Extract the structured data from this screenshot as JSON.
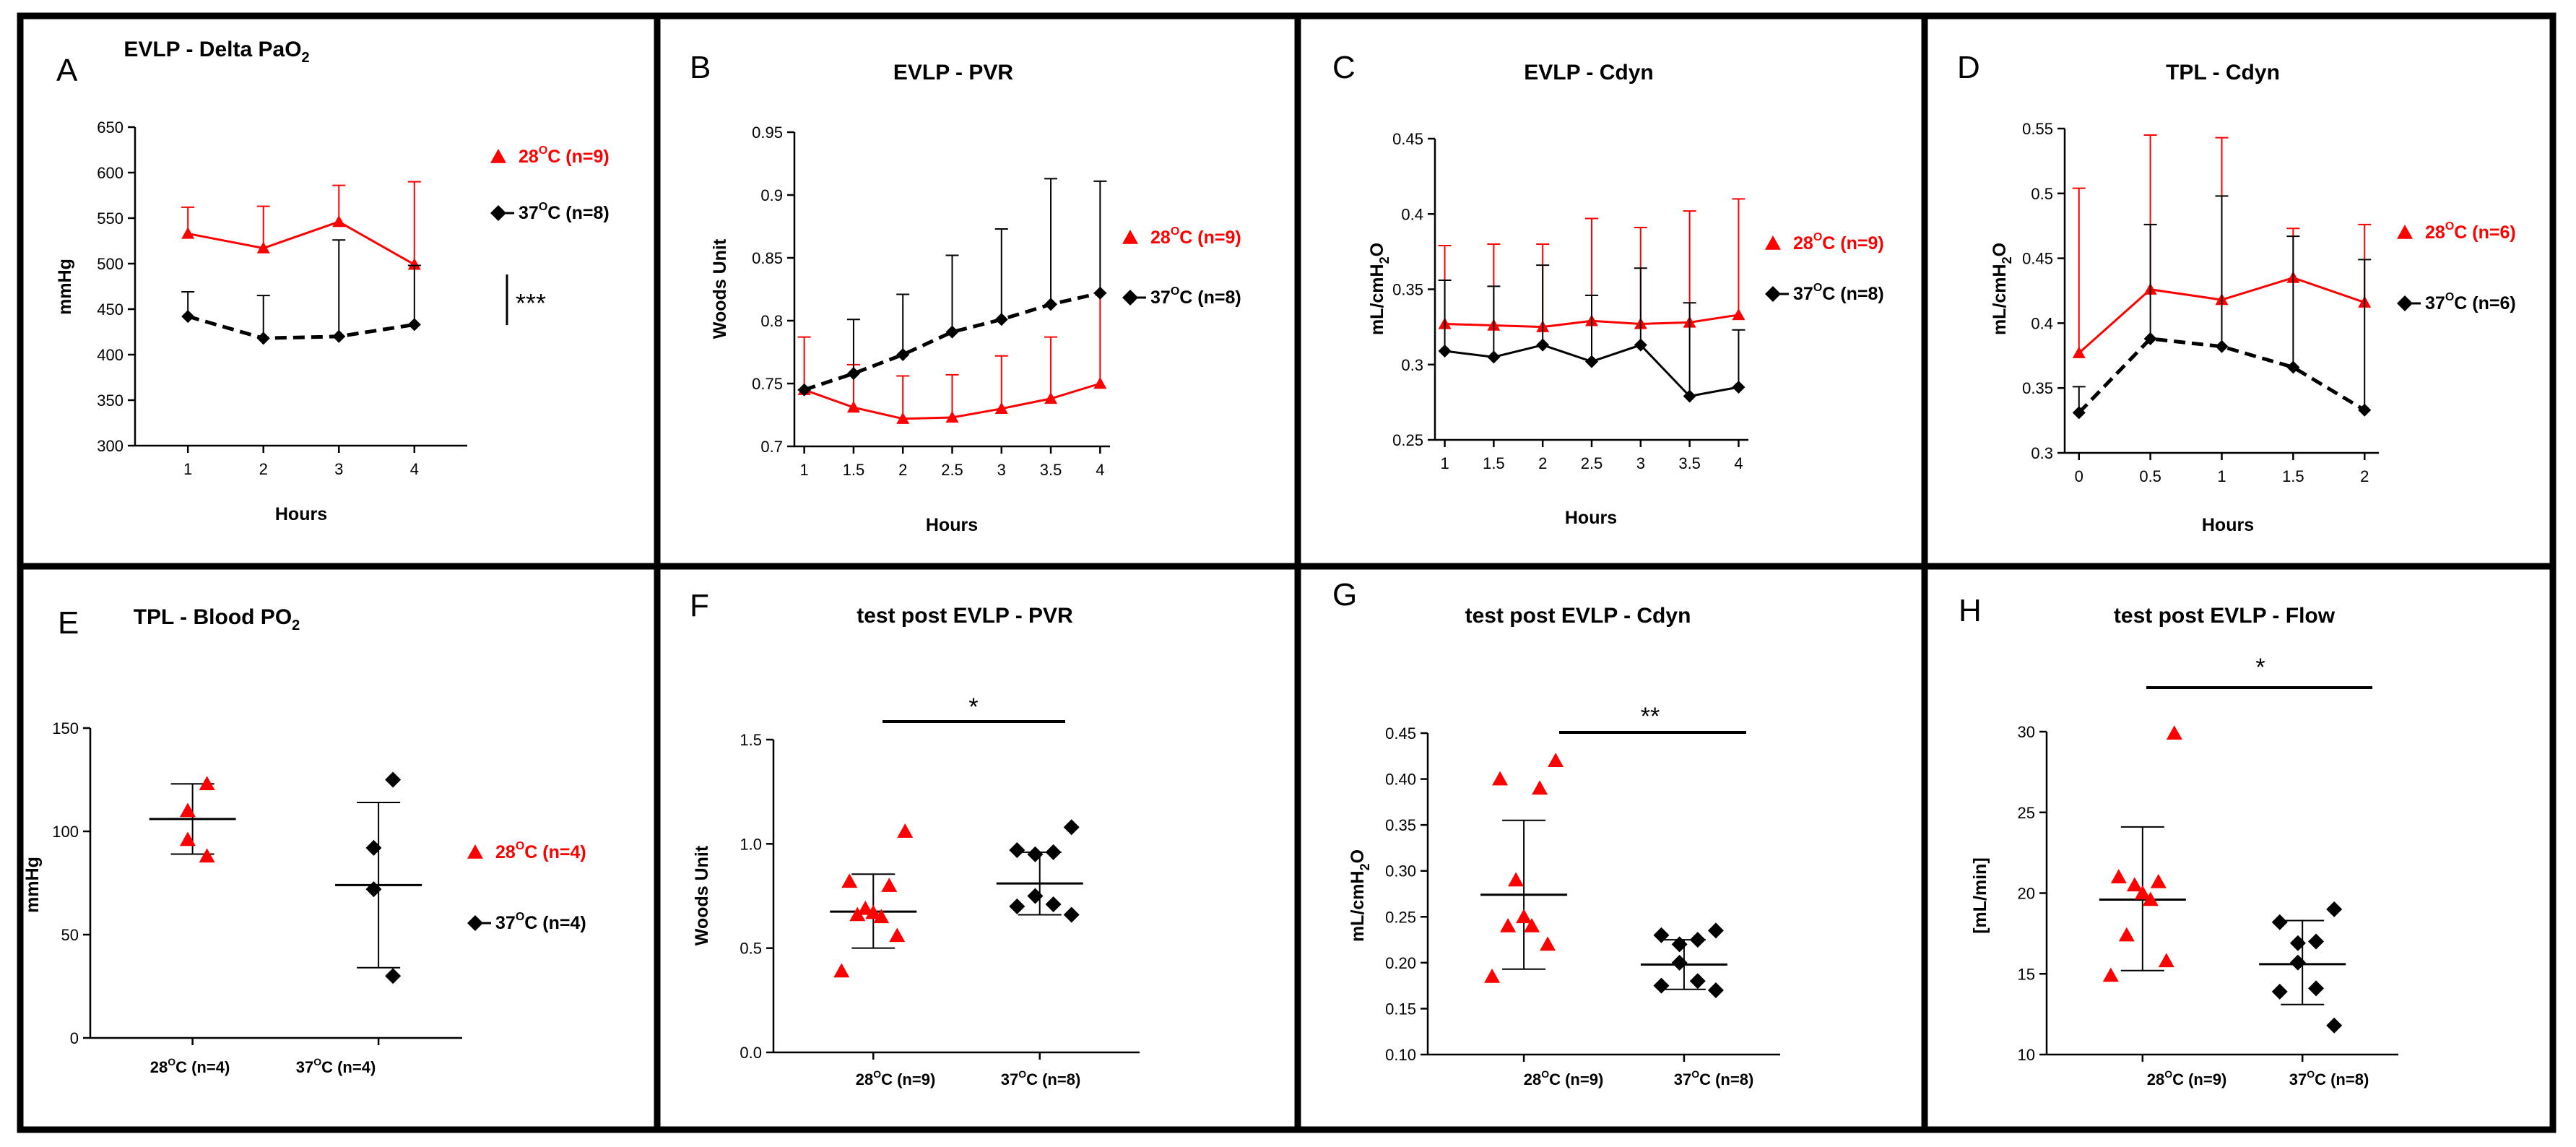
{
  "colors": {
    "warm": "#ff0000",
    "cold": "#000000"
  },
  "chart_data": [
    {
      "id": "A",
      "type": "line",
      "title_main": "EVLP - Delta PaO",
      "title_sub": "2",
      "xlabel": "Hours",
      "ylabel": "mmHg",
      "x": [
        1,
        2,
        3,
        4
      ],
      "xticks": [
        "1",
        "2",
        "3",
        "4"
      ],
      "xlim": [
        0.3,
        4.7
      ],
      "ylim": [
        300,
        650
      ],
      "yticks": [
        300,
        350,
        400,
        450,
        500,
        550,
        600,
        650
      ],
      "series": [
        {
          "name": "28°C (n=9)",
          "color": "#ff0000",
          "marker": "triangle",
          "dashed": false,
          "values": [
            533,
            517,
            546,
            499
          ],
          "err_up": [
            562,
            563,
            586,
            590
          ]
        },
        {
          "name": "37°C (n=8)",
          "color": "#000000",
          "marker": "diamond",
          "dashed": true,
          "values": [
            442,
            418,
            420,
            433
          ],
          "err_up": [
            469,
            465,
            526,
            498
          ]
        }
      ],
      "annotation": "***",
      "legend": [
        {
          "pre": "28",
          "sup": "O",
          "post": "C (n=9)",
          "color": "#ff0000",
          "marker": "triangle"
        },
        {
          "pre": "37",
          "sup": "O",
          "post": "C (n=8)",
          "color": "#000000",
          "marker": "diamond"
        }
      ]
    },
    {
      "id": "B",
      "type": "line",
      "title_main": "EVLP - PVR",
      "title_sub": "",
      "xlabel": "Hours",
      "ylabel": "Woods Unit",
      "x": [
        1,
        1.5,
        2,
        2.5,
        3,
        3.5,
        4
      ],
      "xticks": [
        "1",
        "1.5",
        "2",
        "2.5",
        "3",
        "3.5",
        "4"
      ],
      "xlim": [
        0.9,
        4.1
      ],
      "ylim": [
        0.7,
        0.95
      ],
      "yticks": [
        0.7,
        0.75,
        0.8,
        0.85,
        0.9,
        0.95
      ],
      "series": [
        {
          "name": "28°C (n=9)",
          "color": "#ff0000",
          "marker": "triangle",
          "dashed": false,
          "values": [
            0.745,
            0.731,
            0.722,
            0.723,
            0.73,
            0.738,
            0.75
          ],
          "err_up": [
            0.787,
            0.765,
            0.756,
            0.757,
            0.772,
            0.787,
            0.822
          ]
        },
        {
          "name": "37°C (n=8)",
          "color": "#000000",
          "marker": "diamond",
          "dashed": true,
          "values": [
            0.745,
            0.758,
            0.773,
            0.791,
            0.801,
            0.813,
            0.822
          ],
          "err_up": [
            0.745,
            0.801,
            0.821,
            0.852,
            0.873,
            0.913,
            0.911
          ]
        }
      ],
      "legend": [
        {
          "pre": "28",
          "sup": "O",
          "post": "C (n=9)",
          "color": "#ff0000",
          "marker": "triangle"
        },
        {
          "pre": "37",
          "sup": "O",
          "post": "C (n=8)",
          "color": "#000000",
          "marker": "diamond"
        }
      ]
    },
    {
      "id": "C",
      "type": "line",
      "title_main": "EVLP - Cdyn",
      "title_sub": "",
      "xlabel": "Hours",
      "ylabel_parts": [
        "mL/cmH",
        "2",
        "O"
      ],
      "x": [
        1,
        1.5,
        2,
        2.5,
        3,
        3.5,
        4
      ],
      "xticks": [
        "1",
        "1.5",
        "2",
        "2.5",
        "3",
        "3.5",
        "4"
      ],
      "xlim": [
        0.9,
        4.1
      ],
      "ylim": [
        0.25,
        0.45
      ],
      "yticks": [
        0.25,
        0.3,
        0.35,
        0.4,
        0.45
      ],
      "series": [
        {
          "name": "28°C (n=9)",
          "color": "#ff0000",
          "marker": "triangle",
          "dashed": false,
          "values": [
            0.327,
            0.326,
            0.325,
            0.329,
            0.327,
            0.328,
            0.333
          ],
          "err_up": [
            0.379,
            0.38,
            0.38,
            0.397,
            0.391,
            0.402,
            0.41
          ]
        },
        {
          "name": "37°C (n=8)",
          "color": "#000000",
          "marker": "diamond",
          "dashed": false,
          "values": [
            0.309,
            0.305,
            0.313,
            0.302,
            0.313,
            0.279,
            0.285
          ],
          "err_up": [
            0.356,
            0.352,
            0.366,
            0.346,
            0.364,
            0.341,
            0.323
          ]
        }
      ],
      "legend": [
        {
          "pre": "28",
          "sup": "O",
          "post": "C (n=9)",
          "color": "#ff0000",
          "marker": "triangle"
        },
        {
          "pre": "37",
          "sup": "O",
          "post": "C (n=8)",
          "color": "#000000",
          "marker": "diamond"
        }
      ]
    },
    {
      "id": "D",
      "type": "line",
      "title_main": "TPL - Cdyn",
      "title_sub": "",
      "xlabel": "Hours",
      "ylabel_parts": [
        "mL/cmH",
        "2",
        "O"
      ],
      "x": [
        0,
        0.5,
        1,
        1.5,
        2
      ],
      "xticks": [
        "0",
        "0.5",
        "1",
        "1.5",
        "2"
      ],
      "xlim": [
        -0.1,
        2.1
      ],
      "ylim": [
        0.3,
        0.55
      ],
      "yticks": [
        0.3,
        0.35,
        0.4,
        0.45,
        0.5,
        0.55
      ],
      "series": [
        {
          "name": "28°C (n=6)",
          "color": "#ff0000",
          "marker": "triangle",
          "dashed": false,
          "values": [
            0.377,
            0.426,
            0.418,
            0.435,
            0.416
          ],
          "err_up": [
            0.504,
            0.545,
            0.543,
            0.473,
            0.476
          ]
        },
        {
          "name": "37°C (n=6)",
          "color": "#000000",
          "marker": "diamond",
          "dashed": true,
          "values": [
            0.331,
            0.388,
            0.382,
            0.366,
            0.333
          ],
          "err_up": [
            0.351,
            0.476,
            0.498,
            0.467,
            0.449
          ]
        }
      ],
      "legend": [
        {
          "pre": "28",
          "sup": "O",
          "post": "C (n=6)",
          "color": "#ff0000",
          "marker": "triangle"
        },
        {
          "pre": "37",
          "sup": "O",
          "post": "C (n=6)",
          "color": "#000000",
          "marker": "diamond"
        }
      ]
    },
    {
      "id": "E",
      "type": "scatter",
      "title_main": "TPL - Blood PO",
      "title_sub": "2",
      "ylabel": "mmHg",
      "ylim": [
        0,
        150
      ],
      "yticks": [
        0,
        50,
        100,
        150
      ],
      "xlim": [
        0.45,
        2.45
      ],
      "groups": [
        {
          "pre": "28",
          "sup": "O",
          "post": "C (n=4)",
          "color": "#ff0000",
          "marker": "triangle",
          "points": [
            123,
            110,
            96,
            88
          ],
          "mean": 106,
          "sd_low": 89,
          "sd_high": 123
        },
        {
          "pre": "37",
          "sup": "O",
          "post": "C (n=4)",
          "color": "#000000",
          "marker": "diamond",
          "points": [
            125,
            92,
            72,
            30
          ],
          "mean": 74,
          "sd_low": 34,
          "sd_high": 114
        }
      ],
      "legend": [
        {
          "pre": "28",
          "sup": "O",
          "post": "C (n=4)",
          "color": "#ff0000",
          "marker": "triangle"
        },
        {
          "pre": "37",
          "sup": "O",
          "post": "C (n=4)",
          "color": "#000000",
          "marker": "diamond"
        }
      ]
    },
    {
      "id": "F",
      "type": "scatter",
      "title_main": "test post EVLP - PVR",
      "title_sub": "",
      "ylabel": "Woods Unit",
      "ylim": [
        0,
        1.5
      ],
      "yticks": [
        "0.0",
        "0.5",
        "1.0",
        "1.5"
      ],
      "xlim": [
        0.4,
        2.6
      ],
      "groups": [
        {
          "pre": "28",
          "sup": "O",
          "post": "C (n=9)",
          "color": "#ff0000",
          "marker": "triangle",
          "points": [
            1.06,
            0.82,
            0.8,
            0.69,
            0.67,
            0.65,
            0.66,
            0.56,
            0.39
          ],
          "mean": 0.675,
          "sd_low": 0.5,
          "sd_high": 0.855
        },
        {
          "pre": "37",
          "sup": "O",
          "post": "C (n=8)",
          "color": "#000000",
          "marker": "diamond",
          "points": [
            1.08,
            0.97,
            0.96,
            0.95,
            0.75,
            0.71,
            0.7,
            0.66
          ],
          "mean": 0.81,
          "sd_low": 0.66,
          "sd_high": 0.96
        }
      ],
      "annotation": "*"
    },
    {
      "id": "G",
      "type": "scatter",
      "title_main": "test post EVLP - Cdyn",
      "title_sub": "",
      "ylabel_parts": [
        "mL/cmH",
        "2",
        "O"
      ],
      "ylim": [
        0.1,
        0.45
      ],
      "yticks": [
        "0.10",
        "0.15",
        "0.20",
        "0.25",
        "0.30",
        "0.35",
        "0.40",
        "0.45"
      ],
      "xlim": [
        0.4,
        2.6
      ],
      "groups": [
        {
          "pre": "28",
          "sup": "O",
          "post": "C (n=9)",
          "color": "#ff0000",
          "marker": "triangle",
          "points": [
            0.42,
            0.4,
            0.39,
            0.29,
            0.25,
            0.24,
            0.24,
            0.22,
            0.185
          ],
          "mean": 0.274,
          "sd_low": 0.193,
          "sd_high": 0.355
        },
        {
          "pre": "37",
          "sup": "O",
          "post": "C (n=8)",
          "color": "#000000",
          "marker": "diamond",
          "points": [
            0.235,
            0.23,
            0.225,
            0.22,
            0.2,
            0.18,
            0.175,
            0.17
          ],
          "mean": 0.198,
          "sd_low": 0.171,
          "sd_high": 0.225
        }
      ],
      "annotation": "**"
    },
    {
      "id": "H",
      "type": "scatter",
      "title_main": "test post EVLP - Flow",
      "title_sub": "",
      "ylabel": "[mL/min]",
      "ylim": [
        10,
        30
      ],
      "yticks": [
        10,
        15,
        20,
        25,
        30
      ],
      "xlim": [
        0.4,
        2.6
      ],
      "groups": [
        {
          "pre": "28",
          "sup": "O",
          "post": "C (n=9)",
          "color": "#ff0000",
          "marker": "triangle",
          "points": [
            29.9,
            21.0,
            20.7,
            20.5,
            20.0,
            19.6,
            17.4,
            15.8,
            14.9
          ],
          "mean": 19.6,
          "sd_low": 15.2,
          "sd_high": 24.1
        },
        {
          "pre": "37",
          "sup": "O",
          "post": "C (n=8)",
          "color": "#000000",
          "marker": "diamond",
          "points": [
            19.0,
            18.2,
            17.0,
            16.9,
            15.7,
            14.1,
            13.9,
            11.8
          ],
          "mean": 15.6,
          "sd_low": 13.1,
          "sd_high": 18.3
        }
      ],
      "annotation": "*"
    }
  ]
}
